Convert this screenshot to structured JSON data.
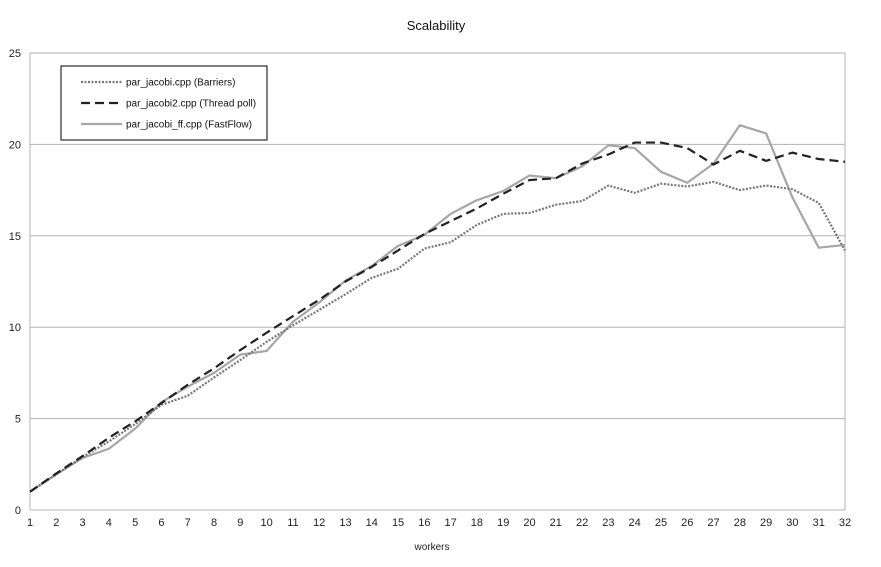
{
  "chart_data": {
    "type": "line",
    "title": "Scalability",
    "xlabel": "workers",
    "ylabel": "",
    "x": [
      1,
      2,
      3,
      4,
      5,
      6,
      7,
      8,
      9,
      10,
      11,
      12,
      13,
      14,
      15,
      16,
      17,
      18,
      19,
      20,
      21,
      22,
      23,
      24,
      25,
      26,
      27,
      28,
      29,
      30,
      31,
      32
    ],
    "xlim": [
      1,
      32
    ],
    "ylim": [
      0,
      25
    ],
    "yticks": [
      0,
      5,
      10,
      15,
      20,
      25
    ],
    "grid": true,
    "legend_position": "top-left",
    "series": [
      {
        "name": "par_jacobi.cpp (Barriers)",
        "style": "dotted",
        "color": "#777777",
        "values": [
          1.0,
          1.95,
          2.9,
          3.75,
          4.7,
          5.75,
          6.25,
          7.25,
          8.2,
          9.2,
          10.1,
          10.95,
          11.8,
          12.7,
          13.2,
          14.3,
          14.65,
          15.6,
          16.2,
          16.25,
          16.7,
          16.9,
          17.75,
          17.35,
          17.85,
          17.7,
          17.95,
          17.5,
          17.75,
          17.55,
          16.8,
          14.2
        ]
      },
      {
        "name": "par_jacobi2.cpp (Thread poll)",
        "style": "dashed",
        "color": "#222222",
        "values": [
          1.0,
          2.0,
          2.95,
          3.95,
          4.85,
          5.85,
          6.85,
          7.75,
          8.75,
          9.7,
          10.6,
          11.5,
          12.5,
          13.3,
          14.2,
          15.1,
          15.8,
          16.5,
          17.3,
          18.05,
          18.15,
          18.95,
          19.45,
          20.1,
          20.1,
          19.8,
          18.9,
          19.65,
          19.1,
          19.55,
          19.2,
          19.05
        ]
      },
      {
        "name": "par_jacobi_ff.cpp (FastFlow)",
        "style": "solid",
        "color": "#a6a6a6",
        "values": [
          1.0,
          1.95,
          2.85,
          3.35,
          4.45,
          5.9,
          6.75,
          7.5,
          8.5,
          8.7,
          10.3,
          11.35,
          12.55,
          13.35,
          14.45,
          15.05,
          16.2,
          16.95,
          17.45,
          18.3,
          18.15,
          18.8,
          19.95,
          19.8,
          18.5,
          17.9,
          18.95,
          21.05,
          20.6,
          17.1,
          14.35,
          14.5
        ]
      }
    ]
  }
}
